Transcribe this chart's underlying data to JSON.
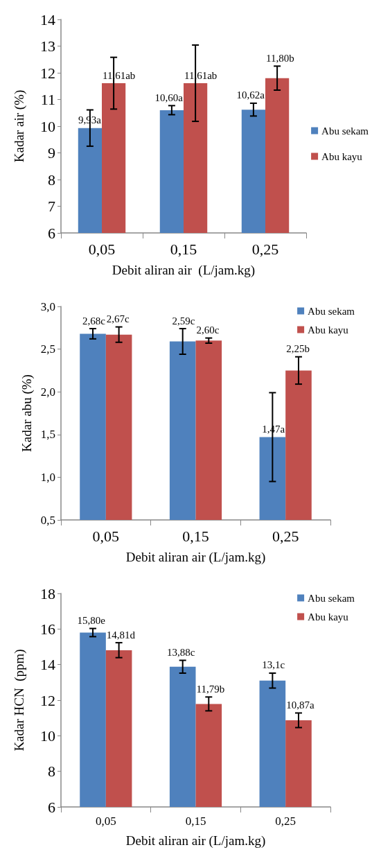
{
  "chart_data": [
    {
      "type": "bar",
      "xlabel": "Debit aliran air  (L/jam.kg)",
      "ylabel": "Kadar air (%)",
      "categories": [
        "0,05",
        "0,15",
        "0,25"
      ],
      "ylim": [
        6,
        14
      ],
      "yticks": [
        6,
        7,
        8,
        9,
        10,
        11,
        12,
        13,
        14
      ],
      "legend": "right",
      "series": [
        {
          "name": "Abu sekam",
          "color": "#4f81bd",
          "values": [
            9.93,
            10.6,
            10.62
          ],
          "errors": [
            0.68,
            0.17,
            0.24
          ],
          "value_labels": [
            "9,93a",
            "10,60a",
            "10,62a"
          ]
        },
        {
          "name": "Abu kayu",
          "color": "#c0504d",
          "values": [
            11.61,
            11.61,
            11.8
          ],
          "errors": [
            0.97,
            1.43,
            0.45
          ],
          "value_labels": [
            "11,61ab",
            "11,61ab",
            "11,80b"
          ]
        }
      ]
    },
    {
      "type": "bar",
      "xlabel": "Debit aliran air (L/jam.kg)",
      "ylabel": "Kadar abu (%)",
      "categories": [
        "0,05",
        "0,15",
        "0,25"
      ],
      "ylim": [
        0.5,
        3.0
      ],
      "yticks": [
        {
          "value": 0.5,
          "label": "0,5"
        },
        {
          "value": 1.0,
          "label": "1,0"
        },
        {
          "value": 1.5,
          "label": "1,5"
        },
        {
          "value": 2.0,
          "label": "2,0"
        },
        {
          "value": 2.5,
          "label": "2,5"
        },
        {
          "value": 3.0,
          "label": "3,0"
        }
      ],
      "legend": "top right",
      "series": [
        {
          "name": "Abu sekam",
          "color": "#4f81bd",
          "values": [
            2.68,
            2.59,
            1.47
          ],
          "errors": [
            0.06,
            0.15,
            0.52
          ],
          "value_labels": [
            "2,68c",
            "2,59c",
            "1,47a"
          ]
        },
        {
          "name": "Abu kayu",
          "color": "#c0504d",
          "values": [
            2.67,
            2.6,
            2.25
          ],
          "errors": [
            0.09,
            0.03,
            0.16
          ],
          "value_labels": [
            "2,67c",
            "2,60c",
            "2,25b"
          ]
        }
      ]
    },
    {
      "type": "bar",
      "xlabel": "Debit aliran air (L/jam.kg)",
      "ylabel": "Kadar HCN  (ppm)",
      "categories": [
        "0,05",
        "0,15",
        "0,25"
      ],
      "ylim": [
        6,
        18
      ],
      "yticks": [
        6,
        8,
        10,
        12,
        14,
        16,
        18
      ],
      "legend": "top right",
      "series": [
        {
          "name": "Abu sekam",
          "color": "#4f81bd",
          "values": [
            15.8,
            13.88,
            13.1
          ],
          "errors": [
            0.23,
            0.36,
            0.42
          ],
          "value_labels": [
            "15,80e",
            "13,88c",
            "13,1c"
          ]
        },
        {
          "name": "Abu kayu",
          "color": "#c0504d",
          "values": [
            14.81,
            11.79,
            10.87
          ],
          "errors": [
            0.42,
            0.39,
            0.41
          ],
          "value_labels": [
            "14,81d",
            "11,79b",
            "10,87a"
          ]
        }
      ]
    }
  ]
}
